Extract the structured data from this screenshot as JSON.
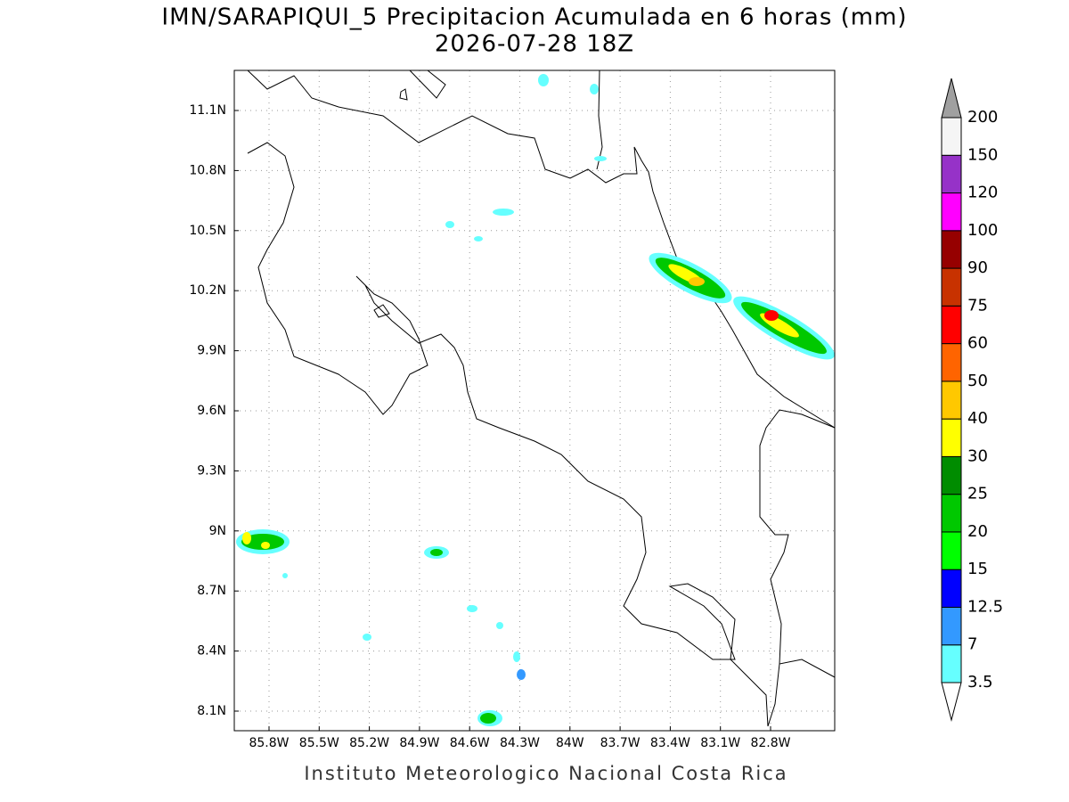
{
  "title": "IMN/SARAPIQUI_5 Precipitacion Acumulada en 6 horas (mm)",
  "subtitle": "2026-07-28 18Z",
  "map": {
    "lon_labels": [
      "85.8W",
      "85.5W",
      "85.2W",
      "84.9W",
      "84.6W",
      "84.3W",
      "84W",
      "83.7W",
      "83.4W",
      "83.1W",
      "82.8W"
    ],
    "lat_labels": [
      "11.1N",
      "10.8N",
      "10.5N",
      "10.2N",
      "9.9N",
      "9.6N",
      "9.3N",
      "9N",
      "8.7N",
      "8.4N",
      "8.1N"
    ]
  },
  "colorbar": {
    "labels": [
      "3.5",
      "7",
      "12.5",
      "15",
      "20",
      "25",
      "30",
      "40",
      "50",
      "60",
      "75",
      "90",
      "100",
      "120",
      "150",
      "200"
    ],
    "colors": [
      "#66ffff",
      "#3399ff",
      "#0000ff",
      "#00ff00",
      "#00c800",
      "#008c00",
      "#ffff00",
      "#ffc800",
      "#ff6400",
      "#ff0000",
      "#c83200",
      "#960000",
      "#ff00ff",
      "#9632c8",
      "#f5f5f5"
    ],
    "low_color": "#ffffff",
    "high_color": "#a0a0a0"
  },
  "footer": "Instituto Meteorologico Nacional Costa Rica"
}
